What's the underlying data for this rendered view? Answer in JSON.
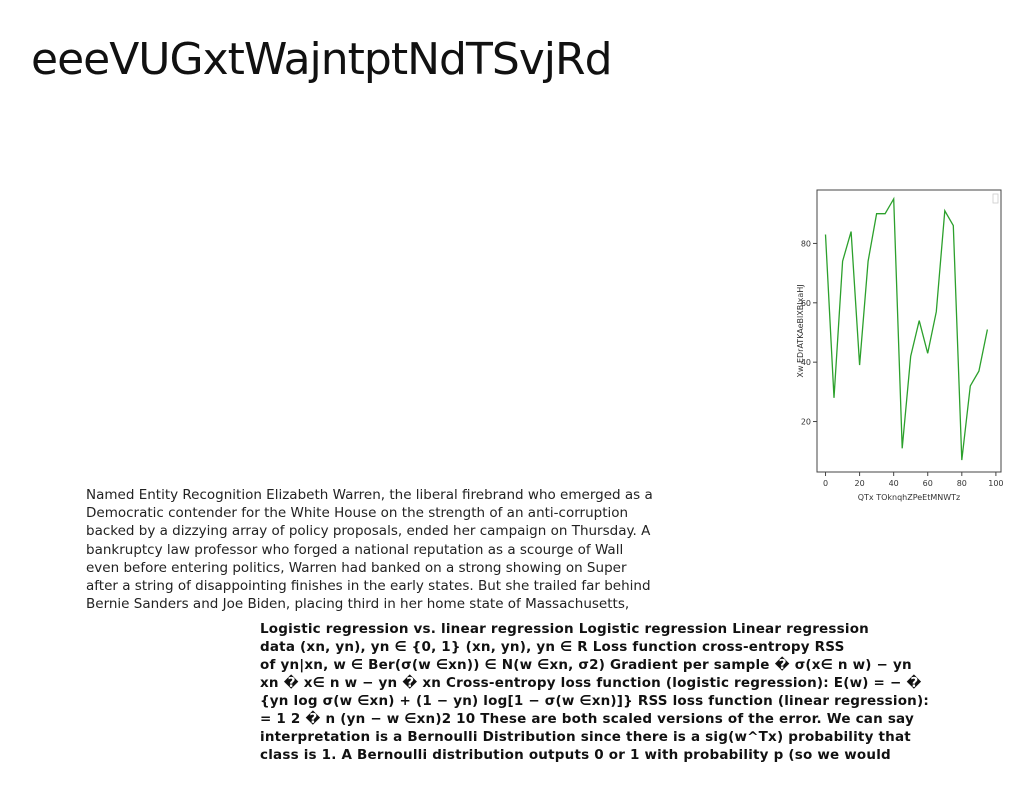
{
  "document": {
    "title": "eeeVUGxtWajntptNdTSvjRd",
    "paragraph_lines": [
      "Named Entity Recognition Elizabeth Warren, the liberal firebrand who emerged as a",
      "Democratic contender for the White House on the strength of an anti-corruption",
      "backed by a dizzying array of policy proposals, ended her campaign on Thursday. A",
      "bankruptcy law professor who forged a national reputation as a scourge of Wall",
      "even before entering politics, Warren had banked on a strong showing on Super",
      "after a string of disappointing finishes in the early states. But she trailed far behind",
      "Bernie Sanders and Joe Biden, placing third in her home state of Massachusetts,"
    ],
    "bold_lines": [
      "Logistic regression vs. linear regression Logistic regression Linear regression",
      "data (xn, yn), yn ∈ {0, 1} (xn, yn), yn ∈ R Loss function cross-entropy RSS",
      "of yn|xn, w ∈ Ber(σ(w ∈xn)) ∈ N(w ∈xn, σ2) Gradient per sample � σ(x∈ n w) − yn",
      "xn � x∈ n w − yn � xn Cross-entropy loss function (logistic regression): E(w) = − �",
      "{yn log σ(w ∈xn) + (1 − yn) log[1 − σ(w ∈xn)]} RSS loss function (linear regression):",
      "= 1 2 � n (yn − w ∈xn)2 10 These are both scaled versions of the error. We can say",
      "interpretation is a Bernoulli Distribution since there is a sig(w^Tx) probability that",
      "class is 1. A Bernoulli distribution outputs 0 or 1 with probability p (so we would"
    ]
  },
  "chart_data": {
    "type": "line",
    "xlabel": "QTx TOknqhZPeEtMNWTz",
    "ylabel": "Xw EDrATKAeBlXBIxaHJ",
    "xlim": [
      -5,
      103
    ],
    "ylim": [
      3,
      98
    ],
    "xticks": [
      0,
      20,
      40,
      60,
      80,
      100
    ],
    "yticks": [
      20,
      40,
      60,
      80
    ],
    "grid": false,
    "series": [
      {
        "color": "#2ca02c",
        "x": [
          0,
          5,
          10,
          15,
          20,
          25,
          30,
          35,
          40,
          45,
          50,
          55,
          60,
          65,
          70,
          75,
          80,
          85,
          90,
          95
        ],
        "y": [
          83,
          28,
          74,
          84,
          39,
          74,
          90,
          90,
          95,
          11,
          42,
          54,
          43,
          57,
          91,
          86,
          7,
          32,
          37,
          51
        ]
      }
    ]
  }
}
